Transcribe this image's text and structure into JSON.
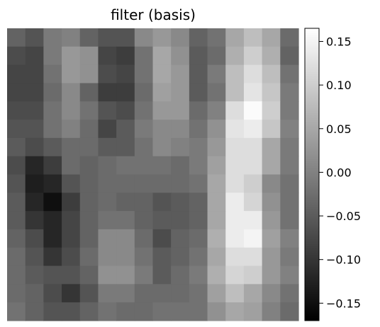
{
  "chart_data": {
    "type": "heatmap",
    "title": "filter (basis)",
    "xlabel": "",
    "ylabel": "",
    "colormap": "gray",
    "colorbar": {
      "vmin": -0.17,
      "vmax": 0.165,
      "ticks": [
        0.15,
        0.1,
        0.05,
        0.0,
        -0.05,
        -0.1,
        -0.15
      ],
      "tick_labels": [
        "0.15",
        "0.10",
        "0.05",
        "0.00",
        "−0.05",
        "−0.10",
        "−0.15"
      ]
    },
    "rows": 16,
    "cols": 16,
    "z": [
      [
        -0.04,
        -0.06,
        -0.01,
        0.0,
        -0.04,
        -0.06,
        -0.06,
        0.01,
        0.03,
        0.01,
        -0.04,
        -0.02,
        0.05,
        0.08,
        0.05,
        -0.03
      ],
      [
        -0.07,
        -0.08,
        -0.01,
        0.03,
        0.02,
        -0.08,
        -0.09,
        -0.02,
        0.05,
        0.02,
        -0.05,
        -0.03,
        0.06,
        0.1,
        0.06,
        -0.04
      ],
      [
        -0.08,
        -0.08,
        -0.02,
        0.03,
        0.02,
        -0.07,
        -0.08,
        -0.02,
        0.05,
        0.03,
        -0.05,
        -0.01,
        0.08,
        0.12,
        0.08,
        -0.02
      ],
      [
        -0.08,
        -0.08,
        -0.03,
        0.01,
        -0.04,
        -0.09,
        -0.09,
        -0.03,
        0.04,
        0.03,
        -0.05,
        -0.02,
        0.08,
        0.13,
        0.09,
        -0.01
      ],
      [
        -0.07,
        -0.07,
        -0.02,
        0.01,
        -0.02,
        -0.06,
        -0.07,
        -0.02,
        0.03,
        0.03,
        -0.03,
        0.0,
        0.12,
        0.16,
        0.1,
        -0.01
      ],
      [
        -0.06,
        -0.06,
        -0.02,
        0.0,
        -0.03,
        -0.08,
        -0.05,
        -0.01,
        0.01,
        0.01,
        -0.02,
        0.02,
        0.13,
        0.14,
        0.09,
        0.0
      ],
      [
        -0.05,
        -0.07,
        -0.05,
        -0.03,
        -0.03,
        -0.05,
        -0.05,
        -0.02,
        0.01,
        0.0,
        -0.01,
        0.03,
        0.12,
        0.12,
        0.05,
        -0.01
      ],
      [
        -0.07,
        -0.12,
        -0.09,
        -0.03,
        -0.04,
        -0.03,
        -0.02,
        -0.02,
        -0.02,
        -0.03,
        -0.01,
        0.04,
        0.12,
        0.12,
        0.05,
        -0.01
      ],
      [
        -0.06,
        -0.13,
        -0.12,
        -0.06,
        -0.04,
        -0.03,
        -0.03,
        -0.03,
        -0.03,
        -0.03,
        -0.02,
        0.05,
        0.12,
        0.1,
        0.01,
        -0.02
      ],
      [
        -0.05,
        -0.12,
        -0.15,
        -0.09,
        -0.04,
        -0.03,
        -0.04,
        -0.04,
        -0.06,
        -0.05,
        -0.04,
        0.05,
        0.14,
        0.11,
        0.02,
        -0.02
      ],
      [
        -0.05,
        -0.1,
        -0.12,
        -0.08,
        -0.04,
        -0.02,
        -0.02,
        -0.04,
        -0.05,
        -0.05,
        -0.04,
        0.05,
        0.14,
        0.14,
        0.03,
        -0.02
      ],
      [
        -0.04,
        -0.07,
        -0.12,
        -0.08,
        -0.04,
        0.01,
        0.01,
        -0.03,
        -0.07,
        -0.04,
        -0.03,
        0.06,
        0.14,
        0.15,
        0.04,
        0.0
      ],
      [
        -0.03,
        -0.06,
        -0.1,
        -0.07,
        -0.03,
        0.01,
        0.01,
        -0.02,
        -0.05,
        -0.04,
        -0.02,
        0.05,
        0.12,
        0.12,
        0.03,
        -0.01
      ],
      [
        -0.03,
        -0.05,
        -0.06,
        -0.06,
        -0.04,
        0.02,
        0.02,
        -0.01,
        -0.05,
        -0.03,
        -0.01,
        0.06,
        0.11,
        0.1,
        0.03,
        0.0
      ],
      [
        -0.03,
        -0.04,
        -0.07,
        -0.1,
        -0.06,
        -0.01,
        -0.01,
        -0.03,
        -0.03,
        -0.03,
        -0.02,
        0.04,
        0.08,
        0.05,
        0.01,
        -0.02
      ],
      [
        -0.02,
        -0.04,
        -0.06,
        -0.06,
        -0.04,
        -0.02,
        -0.03,
        -0.03,
        -0.02,
        -0.02,
        -0.02,
        0.02,
        0.05,
        0.04,
        0.0,
        -0.03
      ]
    ]
  }
}
